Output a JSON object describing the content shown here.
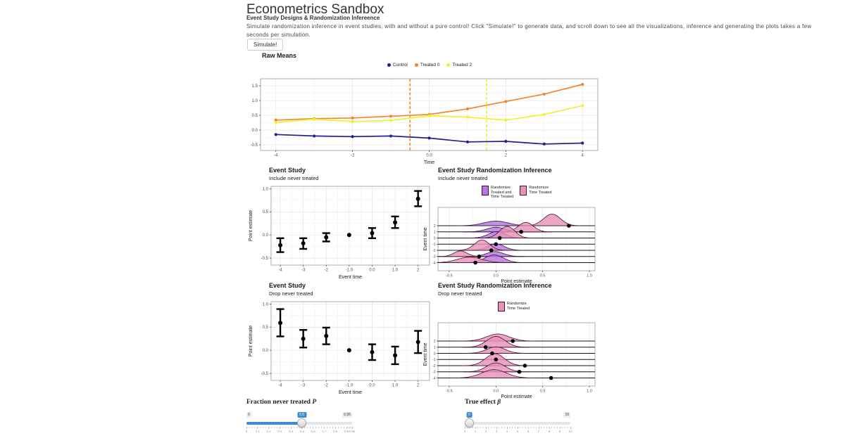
{
  "page": {
    "title": "Econometrics Sandbox",
    "subtitle": "Event Study Designs & Randomization Infereence",
    "description": "Simulate randomization inference in event studies, with and without a pure control! Click \"Simulate!\" to generate data, and scroll down to see all the visualizations, inference and generating the plots takes a few seconds per simulation.",
    "simulate_button": "Simulate!"
  },
  "colors": {
    "control": "#20208F",
    "treated0": "#F8822A",
    "treated2": "#EFF230",
    "purple_fill": "#B678DD",
    "purple_stroke": "#3A1040",
    "pink_fill": "#E693B8",
    "pink_stroke": "#4A1430",
    "dot": "#000000",
    "slider_accent": "#428bca"
  },
  "chart_data": [
    {
      "id": "raw-means",
      "type": "line",
      "title": "Raw Means",
      "xlabel": "Time",
      "x": [
        -4,
        -3,
        -2,
        -1,
        0,
        1,
        2,
        3,
        4
      ],
      "xticks": [
        -4,
        -2,
        0,
        2,
        4
      ],
      "xminor": [
        -3,
        -1,
        1,
        3
      ],
      "yticks": [
        -0.5,
        0.0,
        0.5,
        1.0,
        1.5
      ],
      "yminor": [
        -0.25,
        0.25,
        0.75,
        1.25
      ],
      "xlim": [
        -4.4,
        4.4
      ],
      "ylim": [
        -0.69,
        1.74
      ],
      "series": [
        {
          "name": "Control",
          "color_key": "control",
          "values": [
            -0.15,
            -0.2,
            -0.22,
            -0.2,
            -0.27,
            -0.4,
            -0.38,
            -0.47,
            -0.44
          ]
        },
        {
          "name": "Treated 0",
          "color_key": "treated0",
          "values": [
            0.34,
            0.39,
            0.41,
            0.47,
            0.53,
            0.72,
            0.97,
            1.22,
            1.55
          ]
        },
        {
          "name": "Treated 2",
          "color_key": "treated2",
          "values": [
            0.26,
            0.37,
            0.29,
            0.33,
            0.48,
            0.44,
            0.34,
            0.53,
            0.83
          ]
        }
      ],
      "vlines": [
        {
          "x": -0.5,
          "color_key": "treated0"
        },
        {
          "x": 1.5,
          "color_key": "treated2"
        }
      ]
    },
    {
      "id": "event-study-include",
      "type": "scatter",
      "title": "Event Study",
      "subtitle": "Include never treated",
      "xlabel": "Event time",
      "ylabel": "Point estimate",
      "xticks": [
        -4,
        -3,
        -2,
        -1,
        0,
        1,
        2
      ],
      "xminor": [
        -3.5,
        -2.5,
        -1.5,
        -0.5,
        0.5,
        1.5
      ],
      "yticks": [
        -0.5,
        0.0,
        0.5,
        1.0
      ],
      "yminor": [
        -0.25,
        0.25,
        0.75
      ],
      "xlim": [
        -4.4,
        2.5
      ],
      "ylim": [
        -0.65,
        1.05
      ],
      "points": [
        {
          "t": -4,
          "est": -0.22,
          "lo": -0.37,
          "hi": -0.07
        },
        {
          "t": -3,
          "est": -0.18,
          "lo": -0.3,
          "hi": -0.07
        },
        {
          "t": -2,
          "est": -0.05,
          "lo": -0.14,
          "hi": 0.04
        },
        {
          "t": -1,
          "est": 0.0
        },
        {
          "t": 0,
          "est": 0.04,
          "lo": -0.07,
          "hi": 0.15
        },
        {
          "t": 1,
          "est": 0.27,
          "lo": 0.15,
          "hi": 0.4
        },
        {
          "t": 2,
          "est": 0.78,
          "lo": 0.62,
          "hi": 0.95
        }
      ]
    },
    {
      "id": "ri-include",
      "type": "ridgeline",
      "title": "Event Study Randomization Inference",
      "subtitle": "Include never treated",
      "xlabel": "Point estimate",
      "ylabel": "Event time",
      "xticks": [
        -0.5,
        0.0,
        0.5,
        1.0
      ],
      "xminor": [
        -0.25,
        0.25,
        0.75
      ],
      "xlim": [
        -0.62,
        1.06
      ],
      "legend": [
        {
          "lines": [
            "Randomize",
            "Treated and",
            "Time Treated"
          ],
          "fill_key": "purple_fill",
          "stroke_key": "purple_stroke"
        },
        {
          "lines": [
            "Randomize",
            "Time Treated"
          ],
          "fill_key": "pink_fill",
          "stroke_key": "pink_stroke"
        }
      ],
      "rows": [
        {
          "label": "2",
          "dot": 0.78,
          "ridges": [
            {
              "key": "purple",
              "c": 0.0,
              "h": 0.75,
              "s": 0.13
            },
            {
              "key": "pink",
              "c": 0.6,
              "h": 1.9,
              "s": 0.09
            }
          ]
        },
        {
          "label": "1",
          "dot": 0.27,
          "ridges": [
            {
              "key": "purple",
              "c": 0.0,
              "h": 0.75,
              "s": 0.1
            },
            {
              "key": "pink",
              "c": 0.32,
              "h": 1.55,
              "s": 0.08
            }
          ]
        },
        {
          "label": "0",
          "dot": 0.04,
          "ridges": [
            {
              "key": "purple",
              "c": 0.01,
              "h": 1.05,
              "s": 0.09
            },
            {
              "key": "pink",
              "c": 0.12,
              "h": 1.9,
              "s": 0.08
            }
          ]
        },
        {
          "label": "-1",
          "dot": 0.0,
          "ridges": []
        },
        {
          "label": "-2",
          "dot": -0.05,
          "ridges": [
            {
              "key": "purple",
              "c": 0.0,
              "h": 1.05,
              "s": 0.09
            },
            {
              "key": "pink",
              "c": -0.15,
              "h": 1.7,
              "s": 0.08
            }
          ]
        },
        {
          "label": "-3",
          "dot": -0.18,
          "ridges": [
            {
              "key": "purple",
              "c": -0.01,
              "h": 0.8,
              "s": 0.09
            },
            {
              "key": "pink",
              "c": -0.38,
              "h": 0.9,
              "s": 0.07
            }
          ]
        },
        {
          "label": "-4",
          "dot": -0.22,
          "ridges": [
            {
              "key": "purple",
              "c": -0.02,
              "h": 1.25,
              "s": 0.1
            },
            {
              "key": "pink",
              "c": -0.28,
              "h": 0.9,
              "s": 0.13
            }
          ]
        }
      ]
    },
    {
      "id": "event-study-drop",
      "type": "scatter",
      "title": "Event Study",
      "subtitle": "Drop never treated",
      "xlabel": "Event time",
      "ylabel": "Point estimate",
      "xticks": [
        -4,
        -3,
        -2,
        -1,
        0,
        1,
        2
      ],
      "xminor": [
        -3.5,
        -2.5,
        -1.5,
        -0.5,
        0.5,
        1.5
      ],
      "yticks": [
        -0.5,
        0.0,
        0.5,
        1.0
      ],
      "yminor": [
        -0.25,
        0.25,
        0.75
      ],
      "xlim": [
        -4.4,
        2.5
      ],
      "ylim": [
        -0.65,
        1.05
      ],
      "points": [
        {
          "t": -4,
          "est": 0.59,
          "lo": 0.3,
          "hi": 0.89
        },
        {
          "t": -3,
          "est": 0.25,
          "lo": 0.06,
          "hi": 0.44
        },
        {
          "t": -2,
          "est": 0.31,
          "lo": 0.13,
          "hi": 0.49
        },
        {
          "t": -1,
          "est": 0.0
        },
        {
          "t": 0,
          "est": -0.04,
          "lo": -0.21,
          "hi": 0.13
        },
        {
          "t": 1,
          "est": -0.11,
          "lo": -0.3,
          "hi": 0.08
        },
        {
          "t": 2,
          "est": 0.18,
          "lo": -0.06,
          "hi": 0.42
        }
      ]
    },
    {
      "id": "ri-drop",
      "type": "ridgeline",
      "title": "Event Study Randomization Inference",
      "subtitle": "Drop never treated",
      "xlabel": "Point estimate",
      "ylabel": "Event time",
      "xticks": [
        -0.5,
        0.0,
        0.5,
        1.0
      ],
      "xminor": [
        -0.25,
        0.25,
        0.75
      ],
      "xlim": [
        -0.62,
        1.06
      ],
      "legend": [
        {
          "lines": [
            "Randomize",
            "Time Treated"
          ],
          "fill_key": "pink_fill",
          "stroke_key": "pink_stroke"
        }
      ],
      "rows": [
        {
          "label": "2",
          "dot": 0.18,
          "ridges": [
            {
              "key": "pink",
              "c": 0.02,
              "h": 1.15,
              "s": 0.12
            }
          ]
        },
        {
          "label": "1",
          "dot": -0.11,
          "ridges": [
            {
              "key": "pink",
              "c": 0.0,
              "h": 1.75,
              "s": 0.1
            }
          ]
        },
        {
          "label": "0",
          "dot": -0.04,
          "ridges": [
            {
              "key": "pink",
              "c": 0.0,
              "h": 1.05,
              "s": 0.1
            }
          ]
        },
        {
          "label": "-1",
          "dot": 0.0,
          "ridges": []
        },
        {
          "label": "-2",
          "dot": 0.31,
          "ridges": [
            {
              "key": "pink",
              "c": -0.01,
              "h": 1.95,
              "s": 0.1
            }
          ]
        },
        {
          "label": "-3",
          "dot": 0.25,
          "ridges": [
            {
              "key": "pink",
              "c": 0.0,
              "h": 1.45,
              "s": 0.1
            }
          ]
        },
        {
          "label": "-4",
          "dot": 0.59,
          "ridges": [
            {
              "key": "pink",
              "c": -0.02,
              "h": 1.35,
              "s": 0.13
            }
          ]
        }
      ]
    }
  ],
  "sliders": [
    {
      "name": "fraction-never-treated",
      "label_prefix": "Fraction never treated ",
      "label_math": "P",
      "min": 0,
      "max": 0.95,
      "value": 0.5,
      "value_label": "0.5",
      "min_label": "0",
      "max_label": "0.95",
      "show_min": true,
      "ticks": [
        "0",
        "0.1",
        "0.2",
        "0.3",
        "0.4",
        "0.5",
        "0.6",
        "0.7",
        "0.8",
        "0.9",
        "0.95"
      ]
    },
    {
      "name": "true-effect",
      "label_prefix": "True effect ",
      "label_math": "β",
      "min": 0,
      "max": 10,
      "value": 0,
      "value_label": "0",
      "min_label": "0",
      "max_label": "10",
      "show_min": false,
      "ticks": [
        "0",
        "1",
        "2",
        "3",
        "4",
        "5",
        "6",
        "7",
        "8",
        "9",
        "10"
      ]
    }
  ]
}
